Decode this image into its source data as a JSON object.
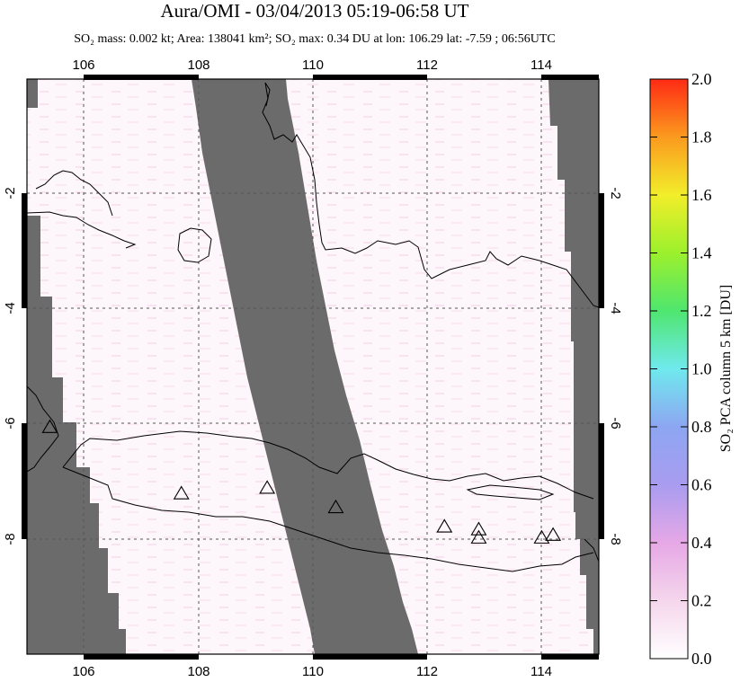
{
  "title": "Aura/OMI - 03/04/2013 05:19-06:58 UT",
  "subtitle": "SO₂ mass: 0.002 kt; Area: 138041 km²; SO₂ max: 0.34 DU at lon: 106.29 lat: -7.59 ; 06:56UTC",
  "map": {
    "lon_range": [
      105,
      115
    ],
    "lat_range": [
      -10.2,
      0.2
    ],
    "lon_ticks": [
      "106",
      "108",
      "110",
      "112",
      "114"
    ],
    "lat_ticks": [
      "-2",
      "-4",
      "-6",
      "-8"
    ],
    "no_data_color": "#6b6b6b",
    "coast_color": "#000000",
    "grid": "dashed"
  },
  "volcanoes": [
    {
      "name": "v1",
      "lon": 105.4,
      "lat": -6.1
    },
    {
      "name": "v2",
      "lon": 107.7,
      "lat": -7.3
    },
    {
      "name": "v3",
      "lon": 109.2,
      "lat": -7.2
    },
    {
      "name": "v4",
      "lon": 110.4,
      "lat": -7.55
    },
    {
      "name": "v5",
      "lon": 112.3,
      "lat": -7.9
    },
    {
      "name": "v6",
      "lon": 112.9,
      "lat": -7.95
    },
    {
      "name": "v7",
      "lon": 112.9,
      "lat": -8.1
    },
    {
      "name": "v8",
      "lon": 114.0,
      "lat": -8.1
    },
    {
      "name": "v9",
      "lon": 114.2,
      "lat": -8.05
    }
  ],
  "colorbar": {
    "label": "SO₂ PCA column 5 km [DU]",
    "min": 0.0,
    "max": 2.0,
    "ticks": [
      "2.0",
      "1.8",
      "1.6",
      "1.4",
      "1.2",
      "1.0",
      "0.8",
      "0.6",
      "0.4",
      "0.2",
      "0.0"
    ]
  }
}
